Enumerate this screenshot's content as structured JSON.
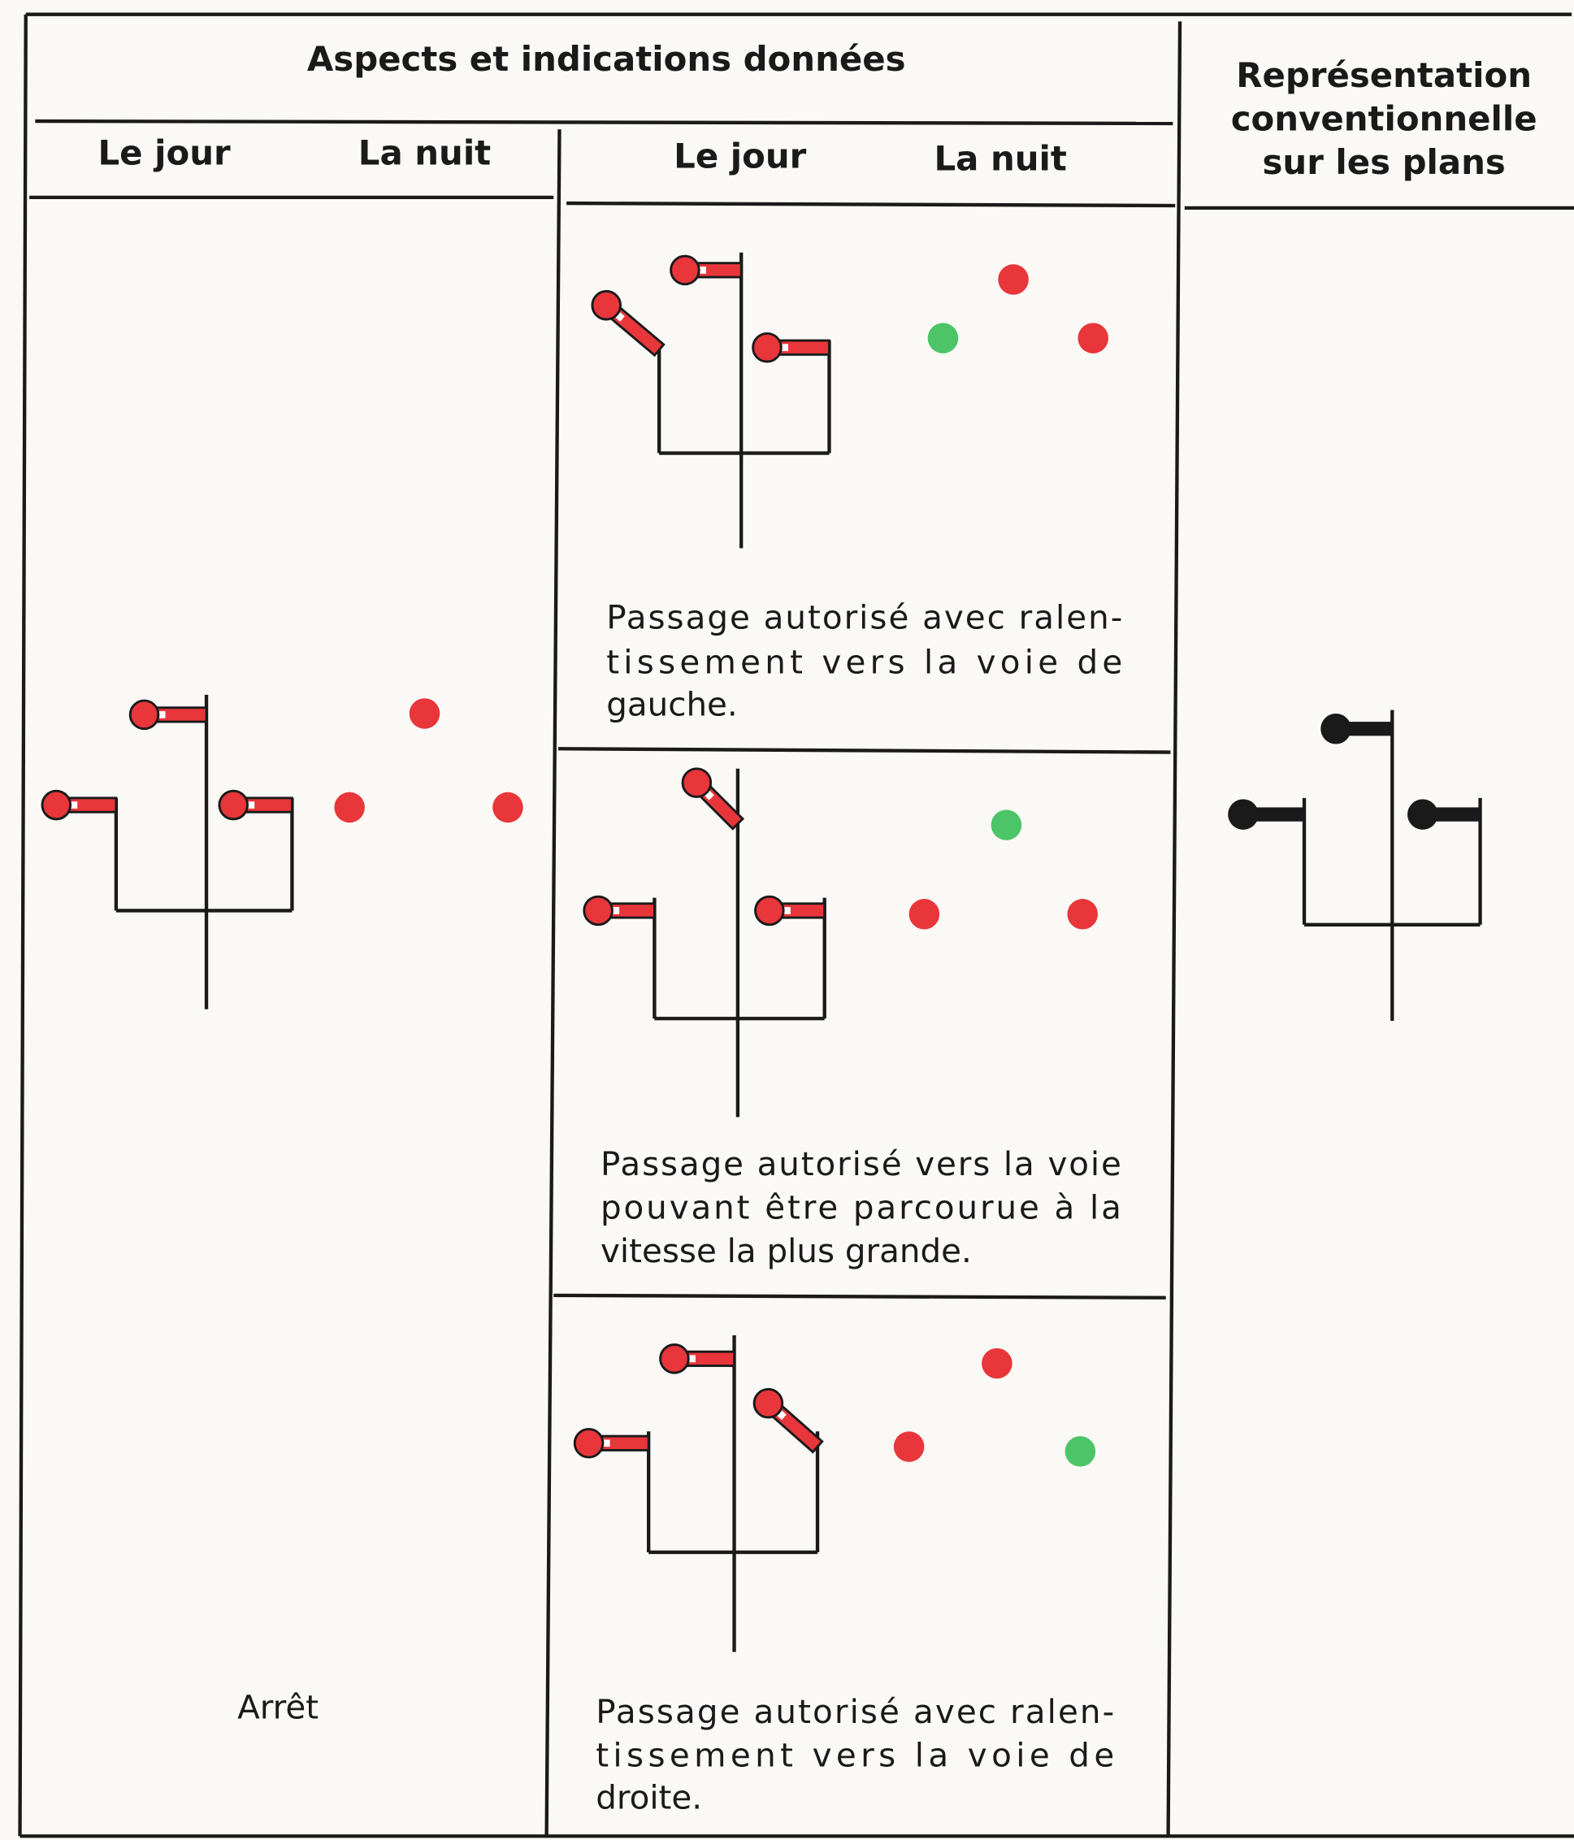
{
  "header": {
    "aspects": "Aspects et indications données",
    "representation": [
      "Représentation",
      "conventionnelle",
      "sur les plans"
    ]
  },
  "columns": {
    "left": [
      "Le jour",
      "La nuit"
    ],
    "middle": [
      "Le jour",
      "La nuit"
    ]
  },
  "left_signal": {
    "label": "Arrêt"
  },
  "middle_signals": [
    {
      "description": [
        "Passage autorisé avec ralen-",
        "tissement vers la voie de",
        "gauche."
      ]
    },
    {
      "description": [
        "Passage autorisé vers la voie",
        "pouvant être parcourue à la",
        "vitesse la plus grande."
      ]
    },
    {
      "description": [
        "Passage autorisé avec ralen-",
        "tissement vers la voie de",
        "droite."
      ]
    }
  ]
}
